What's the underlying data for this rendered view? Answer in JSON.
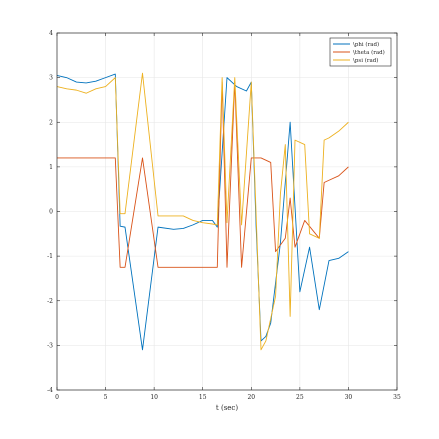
{
  "chart_data": {
    "type": "line",
    "title": "",
    "xlabel": "t (sec)",
    "ylabel": "",
    "xlim": [
      0,
      35
    ],
    "ylim": [
      -4,
      4
    ],
    "xticks": [
      0,
      5,
      10,
      15,
      20,
      25,
      30,
      35
    ],
    "yticks": [
      -4,
      -3,
      -2,
      -1,
      0,
      1,
      2,
      3,
      4
    ],
    "xtick_labels": [
      "0",
      "5",
      "10",
      "15",
      "20",
      "25",
      "30",
      "35"
    ],
    "ytick_labels": [
      "-4",
      "-3",
      "-2",
      "-1",
      "0",
      "1",
      "2",
      "3",
      "4"
    ],
    "grid": true,
    "legend_position": "top-right",
    "series": [
      {
        "name": "\\phi (rad)",
        "color": "#0072BD",
        "x": [
          0,
          1,
          2,
          3,
          4,
          5,
          6,
          6.5,
          7,
          8.8,
          10.4,
          12,
          13,
          14,
          15,
          16,
          16.5,
          17.5,
          18.5,
          19.5,
          20,
          20.5,
          21,
          21.5,
          22,
          23,
          24,
          25,
          26,
          27,
          28,
          29,
          30
        ],
        "y": [
          3.05,
          3.0,
          2.9,
          2.88,
          2.92,
          3.0,
          3.08,
          -0.33,
          -0.35,
          -3.1,
          -0.35,
          -0.4,
          -0.38,
          -0.3,
          -0.2,
          -0.2,
          -0.35,
          3.0,
          2.8,
          2.7,
          2.9,
          -0.35,
          -2.9,
          -2.8,
          -2.5,
          -0.7,
          2.0,
          -1.8,
          -0.8,
          -2.2,
          -1.1,
          -1.05,
          -0.9
        ]
      },
      {
        "name": "\\theta (rad)",
        "color": "#D95319",
        "x": [
          0,
          1,
          2,
          3,
          4,
          5,
          6,
          6.5,
          7,
          8.8,
          10.4,
          12,
          13,
          14,
          15,
          16,
          16.5,
          17,
          17.5,
          18.3,
          19,
          20,
          21,
          21.5,
          22,
          22.5,
          23.5,
          24,
          24.5,
          25.5,
          27,
          27.5,
          28,
          29,
          30
        ],
        "y": [
          1.2,
          1.2,
          1.2,
          1.2,
          1.2,
          1.2,
          1.2,
          -1.25,
          -1.25,
          1.2,
          -1.25,
          -1.25,
          -1.25,
          -1.25,
          -1.25,
          -1.25,
          -1.25,
          2.9,
          -1.25,
          2.9,
          -1.25,
          1.2,
          1.2,
          1.15,
          1.1,
          -0.9,
          -0.6,
          0.3,
          -0.8,
          -0.2,
          -0.6,
          0.65,
          0.7,
          0.8,
          1.0
        ]
      },
      {
        "name": "\\psi (rad)",
        "color": "#EDB120",
        "x": [
          0,
          1,
          2,
          3,
          4,
          5,
          6,
          6.5,
          7,
          8.8,
          10.4,
          12,
          13,
          14,
          15,
          16,
          16.5,
          17,
          17.5,
          18.3,
          19,
          20,
          21,
          21.5,
          22,
          22.5,
          23,
          23.5,
          24,
          24.5,
          25.5,
          26,
          27,
          27.5,
          28,
          29,
          30
        ],
        "y": [
          2.8,
          2.75,
          2.72,
          2.65,
          2.75,
          2.8,
          3.0,
          -0.05,
          -0.05,
          3.1,
          -0.1,
          -0.1,
          -0.1,
          -0.2,
          -0.25,
          -0.28,
          -0.3,
          3.0,
          -0.25,
          3.0,
          -0.3,
          2.9,
          -3.1,
          -2.9,
          -2.4,
          -1.9,
          0.4,
          1.5,
          -2.35,
          1.6,
          1.5,
          -0.5,
          -0.6,
          1.6,
          1.65,
          1.8,
          2.0
        ]
      }
    ]
  }
}
